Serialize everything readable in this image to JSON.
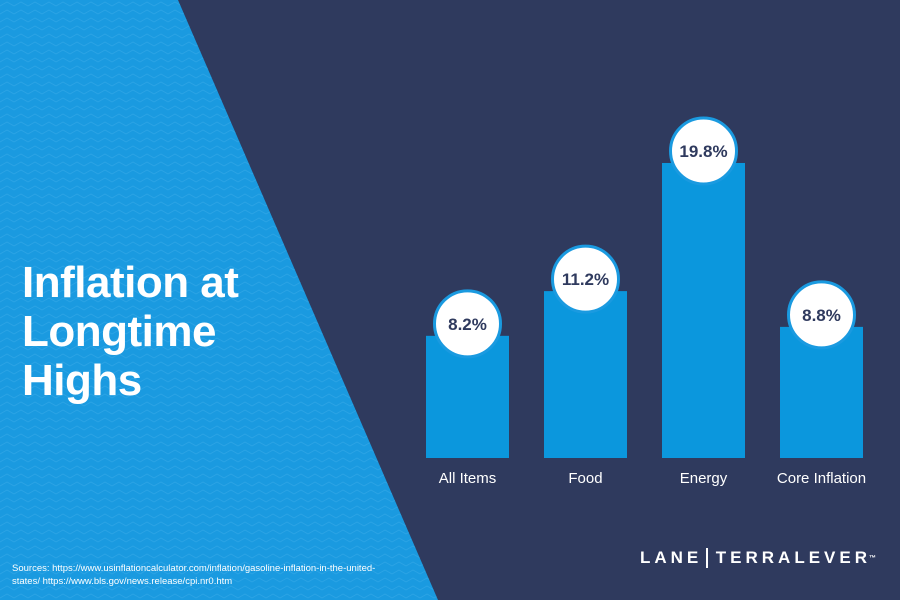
{
  "title_lines": [
    "Inflation at",
    "Longtime",
    "Highs"
  ],
  "sources_text": "Sources: https://www.usinflationcalculator.com/inflation/gasoline-inflation-in-the-united-states/ https://www.bls.gov/news.release/cpi.nr0.htm",
  "logo": {
    "left": "LANE",
    "right": "TERRALEVER",
    "mark": "™"
  },
  "colors": {
    "background_navy": "#2f3a5e",
    "panel_blue": "#1a9ae0",
    "bar_blue": "#0b97dd",
    "circle_fill": "#ffffff",
    "circle_stroke": "#1a9ae0",
    "value_text": "#2f3a5e"
  },
  "chart_data": {
    "type": "bar",
    "categories": [
      "All Items",
      "Food",
      "Energy",
      "Core Inflation"
    ],
    "values": [
      8.2,
      11.2,
      19.8,
      8.8
    ],
    "value_labels": [
      "8.2%",
      "11.2%",
      "19.8%",
      "8.8%"
    ],
    "title": "Inflation at Longtime Highs",
    "xlabel": "",
    "ylabel": "",
    "ylim": [
      0,
      20
    ],
    "grid": false,
    "legend": "none"
  }
}
